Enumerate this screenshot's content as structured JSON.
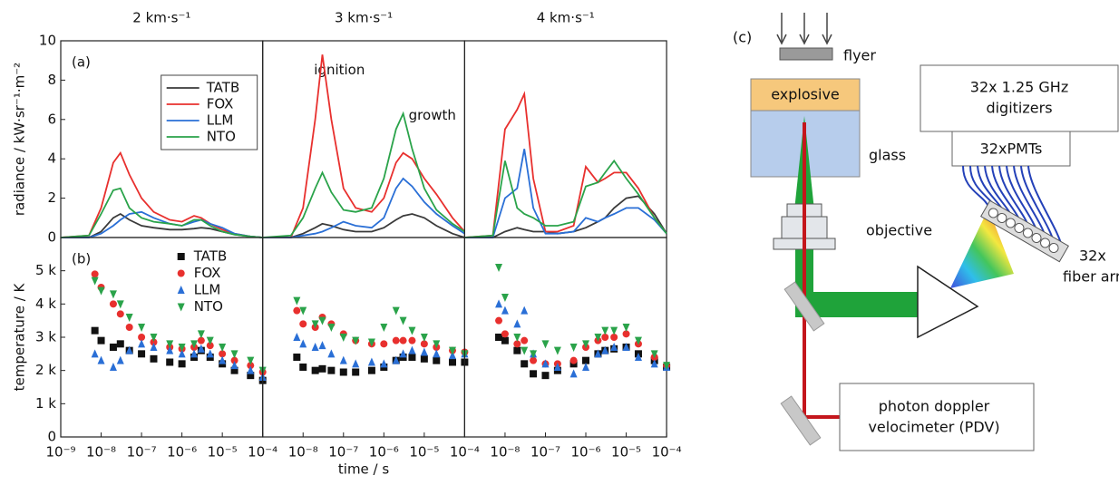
{
  "chart_data": [
    {
      "type": "line",
      "title": "2 km·s⁻¹",
      "ylabel": "radiance / kW·sr⁻¹·m⁻²",
      "panel_label": "(a)",
      "xscale": "log",
      "xlim": [
        1e-09,
        0.0001
      ],
      "ylim": [
        0,
        10
      ],
      "yticks": [
        0,
        2,
        4,
        6,
        8,
        10
      ],
      "legend": "upper right",
      "legend_frame": true,
      "x": [
        1e-09,
        5e-09,
        1e-08,
        2e-08,
        3e-08,
        5e-08,
        1e-07,
        2e-07,
        5e-07,
        1e-06,
        2e-06,
        3e-06,
        5e-06,
        1e-05,
        2e-05,
        5e-05,
        0.0001
      ],
      "series": [
        {
          "name": "TATB",
          "color": "#3a3a3a",
          "values": [
            0,
            0,
            0.3,
            1.0,
            1.2,
            0.9,
            0.6,
            0.5,
            0.4,
            0.4,
            0.45,
            0.5,
            0.45,
            0.3,
            0.15,
            0.05,
            0
          ]
        },
        {
          "name": "FOX",
          "color": "#e8302e",
          "values": [
            0,
            0.1,
            1.5,
            3.8,
            4.3,
            3.2,
            2.0,
            1.3,
            0.9,
            0.8,
            1.1,
            1.0,
            0.7,
            0.4,
            0.2,
            0.05,
            0
          ]
        },
        {
          "name": "LLM",
          "color": "#2a6fd6",
          "values": [
            0,
            0,
            0.2,
            0.6,
            0.9,
            1.2,
            1.3,
            1.0,
            0.7,
            0.6,
            0.8,
            0.9,
            0.7,
            0.5,
            0.2,
            0.05,
            0
          ]
        },
        {
          "name": "NTO",
          "color": "#2aa34a",
          "values": [
            0,
            0.1,
            1.2,
            2.4,
            2.5,
            1.5,
            1.0,
            0.8,
            0.7,
            0.6,
            0.9,
            0.9,
            0.6,
            0.3,
            0.15,
            0.05,
            0
          ]
        }
      ]
    },
    {
      "type": "line",
      "title": "3 km·s⁻¹",
      "annotations": [
        "ignition",
        "growth"
      ],
      "xscale": "log",
      "xlim": [
        1e-09,
        0.0001
      ],
      "ylim": [
        0,
        10
      ],
      "x": [
        1e-09,
        5e-09,
        1e-08,
        2e-08,
        3e-08,
        5e-08,
        1e-07,
        2e-07,
        5e-07,
        1e-06,
        2e-06,
        3e-06,
        5e-06,
        1e-05,
        2e-05,
        5e-05,
        0.0001
      ],
      "series": [
        {
          "color": "#3a3a3a",
          "values": [
            0,
            0,
            0.2,
            0.5,
            0.7,
            0.6,
            0.4,
            0.3,
            0.3,
            0.5,
            0.9,
            1.1,
            1.2,
            1.0,
            0.6,
            0.2,
            0
          ]
        },
        {
          "color": "#e8302e",
          "values": [
            0,
            0,
            1.5,
            6.0,
            9.3,
            6.0,
            2.5,
            1.5,
            1.3,
            2.0,
            3.8,
            4.3,
            4.0,
            3.0,
            2.2,
            1.0,
            0.3
          ]
        },
        {
          "color": "#2a6fd6",
          "values": [
            0,
            0,
            0.1,
            0.2,
            0.3,
            0.5,
            0.8,
            0.6,
            0.5,
            1.0,
            2.5,
            3.0,
            2.6,
            1.8,
            1.2,
            0.6,
            0.2
          ]
        },
        {
          "color": "#2aa34a",
          "values": [
            0,
            0.1,
            1.0,
            2.5,
            3.3,
            2.3,
            1.4,
            1.3,
            1.5,
            3.0,
            5.5,
            6.3,
            4.5,
            2.5,
            1.4,
            0.7,
            0.3
          ]
        }
      ]
    },
    {
      "type": "line",
      "title": "4 km·s⁻¹",
      "xscale": "log",
      "xlim": [
        1e-09,
        0.0001
      ],
      "ylim": [
        0,
        10
      ],
      "x": [
        1e-09,
        5e-09,
        1e-08,
        2e-08,
        3e-08,
        5e-08,
        1e-07,
        2e-07,
        5e-07,
        1e-06,
        2e-06,
        3e-06,
        5e-06,
        1e-05,
        2e-05,
        5e-05,
        0.0001
      ],
      "series": [
        {
          "color": "#3a3a3a",
          "values": [
            0,
            0,
            0.3,
            0.5,
            0.4,
            0.3,
            0.3,
            0.2,
            0.3,
            0.5,
            0.8,
            1.0,
            1.5,
            2.0,
            2.1,
            1.2,
            0.2
          ]
        },
        {
          "color": "#e8302e",
          "values": [
            0,
            0.1,
            5.5,
            6.5,
            7.3,
            3.0,
            0.3,
            0.3,
            0.6,
            3.6,
            2.8,
            3.0,
            3.3,
            3.3,
            2.5,
            1.0,
            0.2
          ]
        },
        {
          "color": "#2a6fd6",
          "values": [
            0,
            0,
            2.0,
            2.5,
            4.5,
            1.5,
            0.2,
            0.2,
            0.3,
            1.0,
            0.8,
            1.0,
            1.2,
            1.5,
            1.5,
            0.9,
            0.2
          ]
        },
        {
          "color": "#2aa34a",
          "values": [
            0,
            0.1,
            3.9,
            1.5,
            1.2,
            1.0,
            0.6,
            0.6,
            0.8,
            2.6,
            2.8,
            3.3,
            3.9,
            3.0,
            2.2,
            1.0,
            0.2
          ]
        }
      ]
    },
    {
      "type": "scatter",
      "ylabel": "temperature / K",
      "panel_label": "(b)",
      "xscale": "log",
      "xlim": [
        1e-09,
        0.0001
      ],
      "ylim": [
        0,
        6000
      ],
      "yticks": [
        0,
        {
          "value": 1000,
          "label": "1 k"
        },
        {
          "value": 2000,
          "label": "2 k"
        },
        {
          "value": 3000,
          "label": "3 k"
        },
        {
          "value": 4000,
          "label": "4 k"
        },
        {
          "value": 5000,
          "label": "5 k"
        }
      ],
      "xticks": [
        {
          "value": 1e-09,
          "label": "10⁻⁹"
        },
        {
          "value": 1e-08,
          "label": "10⁻⁸"
        },
        {
          "value": 1e-07,
          "label": "10⁻⁷"
        },
        {
          "value": 1e-06,
          "label": "10⁻⁶"
        },
        {
          "value": 1e-05,
          "label": "10⁻⁵"
        },
        {
          "value": 0.0001,
          "label": "10⁻⁴"
        }
      ],
      "legend": "upper right",
      "legend_frame": false,
      "x": [
        7e-09,
        1e-08,
        2e-08,
        3e-08,
        5e-08,
        1e-07,
        2e-07,
        5e-07,
        1e-06,
        2e-06,
        3e-06,
        5e-06,
        1e-05,
        2e-05,
        5e-05,
        0.0001
      ],
      "series": [
        {
          "name": "TATB",
          "color": "#111111",
          "marker": "square",
          "values": [
            3200,
            2900,
            2700,
            2800,
            2600,
            2500,
            2350,
            2250,
            2200,
            2400,
            2600,
            2400,
            2200,
            2000,
            1850,
            1700
          ]
        },
        {
          "name": "FOX",
          "color": "#e8302e",
          "marker": "circle",
          "values": [
            4900,
            4500,
            4000,
            3700,
            3300,
            3000,
            2850,
            2700,
            2650,
            2700,
            2900,
            2750,
            2500,
            2300,
            2150,
            1950
          ]
        },
        {
          "name": "LLM",
          "color": "#2a6fd6",
          "marker": "triangle-up",
          "values": [
            2500,
            2300,
            2100,
            2300,
            2600,
            2800,
            2700,
            2600,
            2500,
            2500,
            2650,
            2500,
            2300,
            2150,
            2000,
            1800
          ]
        },
        {
          "name": "NTO",
          "color": "#2aa34a",
          "marker": "triangle-down",
          "values": [
            4700,
            4400,
            4300,
            4000,
            3600,
            3300,
            3000,
            2800,
            2700,
            2800,
            3100,
            2900,
            2700,
            2500,
            2300,
            2000
          ]
        }
      ]
    },
    {
      "type": "scatter",
      "xlabel": "time / s",
      "xscale": "log",
      "xlim": [
        1e-09,
        0.0001
      ],
      "ylim": [
        0,
        6000
      ],
      "xticks": [
        {
          "value": 1e-08,
          "label": "10⁻⁸"
        },
        {
          "value": 1e-07,
          "label": "10⁻⁷"
        },
        {
          "value": 1e-06,
          "label": "10⁻⁶"
        },
        {
          "value": 1e-05,
          "label": "10⁻⁵"
        },
        {
          "value": 0.0001,
          "label": "10⁻⁴"
        }
      ],
      "x": [
        7e-09,
        1e-08,
        2e-08,
        3e-08,
        5e-08,
        1e-07,
        2e-07,
        5e-07,
        1e-06,
        2e-06,
        3e-06,
        5e-06,
        1e-05,
        2e-05,
        5e-05,
        0.0001
      ],
      "series": [
        {
          "color": "#111111",
          "marker": "square",
          "values": [
            2400,
            2100,
            2000,
            2050,
            2000,
            1950,
            1950,
            2000,
            2100,
            2300,
            2400,
            2400,
            2350,
            2300,
            2250,
            2250
          ]
        },
        {
          "color": "#e8302e",
          "marker": "circle",
          "values": [
            3800,
            3400,
            3300,
            3600,
            3400,
            3100,
            2900,
            2800,
            2800,
            2900,
            2900,
            2900,
            2800,
            2700,
            2600,
            2550
          ]
        },
        {
          "color": "#2a6fd6",
          "marker": "triangle-up",
          "values": [
            3000,
            2800,
            2700,
            2750,
            2500,
            2300,
            2200,
            2250,
            2200,
            2300,
            2500,
            2600,
            2550,
            2500,
            2450,
            2500
          ]
        },
        {
          "color": "#2aa34a",
          "marker": "triangle-down",
          "values": [
            4100,
            3800,
            3400,
            3500,
            3300,
            3000,
            2900,
            2850,
            3300,
            3800,
            3500,
            3200,
            3000,
            2800,
            2600,
            2500
          ]
        }
      ]
    },
    {
      "type": "scatter",
      "xscale": "log",
      "xlim": [
        1e-09,
        0.0001
      ],
      "ylim": [
        0,
        6000
      ],
      "xticks": [
        {
          "value": 1e-08,
          "label": "10⁻⁸"
        },
        {
          "value": 1e-07,
          "label": "10⁻⁷"
        },
        {
          "value": 1e-06,
          "label": "10⁻⁶"
        },
        {
          "value": 1e-05,
          "label": "10⁻⁵"
        },
        {
          "value": 0.0001,
          "label": "10⁻⁴"
        }
      ],
      "x": [
        7e-09,
        1e-08,
        2e-08,
        3e-08,
        5e-08,
        1e-07,
        2e-07,
        5e-07,
        1e-06,
        2e-06,
        3e-06,
        5e-06,
        1e-05,
        2e-05,
        5e-05,
        0.0001
      ],
      "series": [
        {
          "color": "#111111",
          "marker": "square",
          "values": [
            3000,
            2900,
            2600,
            2200,
            1900,
            1850,
            2000,
            2200,
            2300,
            2500,
            2600,
            2650,
            2700,
            2500,
            2300,
            2100
          ]
        },
        {
          "color": "#e8302e",
          "marker": "circle",
          "values": [
            3500,
            3100,
            2800,
            2900,
            2300,
            2200,
            2200,
            2300,
            2700,
            2900,
            3000,
            3000,
            3100,
            2800,
            2400,
            2150
          ]
        },
        {
          "color": "#2a6fd6",
          "marker": "triangle-up",
          "values": [
            4000,
            3800,
            3400,
            3800,
            2500,
            2200,
            2100,
            1900,
            2100,
            2500,
            2600,
            2700,
            2700,
            2400,
            2200,
            2100
          ]
        },
        {
          "color": "#2aa34a",
          "marker": "triangle-down",
          "values": [
            5100,
            4200,
            3000,
            2600,
            2500,
            2800,
            2600,
            2700,
            2800,
            3000,
            3200,
            3200,
            3300,
            2900,
            2500,
            2150
          ]
        }
      ]
    }
  ],
  "diagram": {
    "label": "(c)",
    "flyer": "flyer",
    "explosive": "explosive",
    "glass": "glass",
    "objective": "objective",
    "digitizers": [
      "32x 1.25 GHz",
      "digitizers"
    ],
    "pmts": "32xPMTs",
    "fiber_array": [
      "32x",
      "fiber array"
    ],
    "pdv": [
      "photon doppler",
      "velocimeter (PDV)"
    ]
  }
}
